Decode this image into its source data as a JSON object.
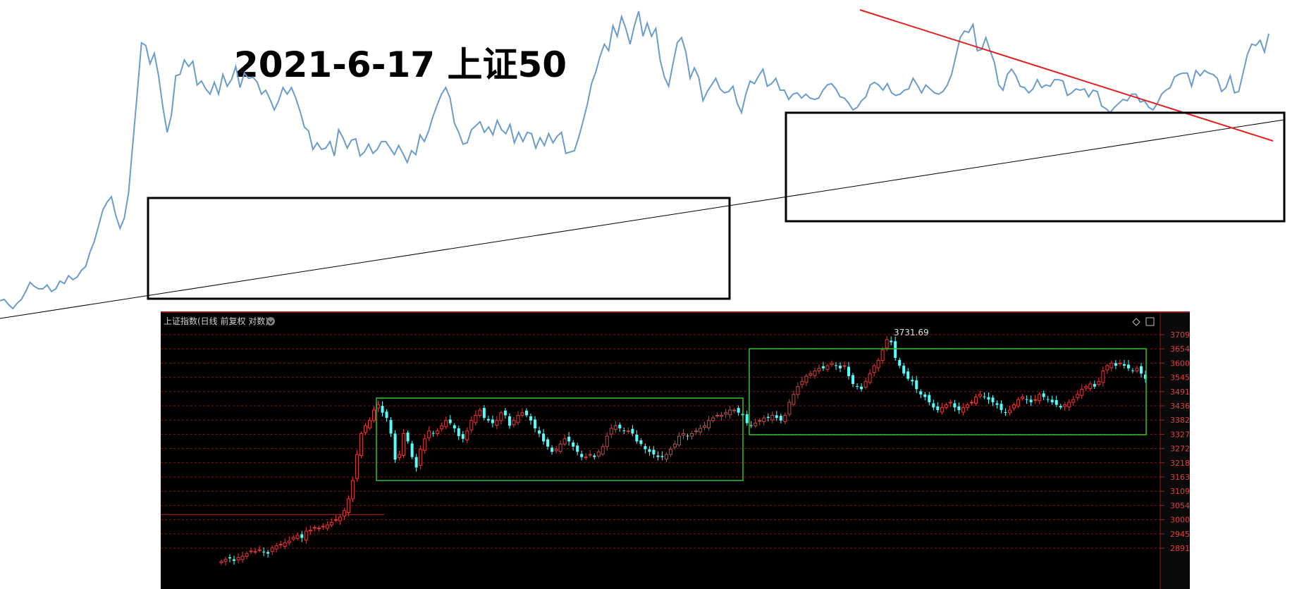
{
  "title": "2021-6-17 上证50",
  "chart_data": [
    {
      "type": "line",
      "title": "2021-6-17 上证50",
      "series_color": "#6a9ccb",
      "series": [
        {
          "values": [
            540,
            541,
            537,
            534,
            538,
            541,
            547,
            554,
            551,
            549,
            549,
            552,
            547,
            549,
            555,
            553,
            559,
            556,
            558,
            563,
            566,
            577,
            585,
            597,
            609,
            615,
            619,
            605,
            595,
            603,
            622,
            660,
            697,
            736,
            734,
            720,
            728,
            711,
            687,
            668,
            681,
            711,
            712,
            723,
            718,
            722,
            704,
            707,
            701,
            697,
            706,
            697,
            712,
            703,
            708,
            718,
            702,
            713,
            709,
            710,
            706,
            697,
            700,
            693,
            685,
            692,
            702,
            697,
            702,
            694,
            684,
            672,
            669,
            655,
            660,
            655,
            656,
            661,
            650,
            670,
            664,
            656,
            662,
            663,
            650,
            653,
            659,
            652,
            655,
            661,
            661,
            656,
            651,
            658,
            652,
            645,
            654,
            651,
            666,
            661,
            669,
            680,
            689,
            697,
            702,
            694,
            675,
            668,
            659,
            660,
            670,
            673,
            676,
            668,
            672,
            666,
            677,
            670,
            667,
            674,
            660,
            668,
            661,
            668,
            667,
            656,
            664,
            658,
            667,
            660,
            665,
            668,
            652,
            653,
            654,
            664,
            676,
            689,
            705,
            714,
            726,
            735,
            730,
            749,
            741,
            756,
            747,
            735,
            749,
            760,
            741,
            751,
            741,
            747,
            723,
            710,
            703,
            720,
            736,
            740,
            729,
            709,
            717,
            710,
            692,
            699,
            704,
            709,
            701,
            698,
            699,
            703,
            690,
            683,
            697,
            707,
            705,
            711,
            716,
            703,
            705,
            709,
            700,
            700,
            693,
            697,
            698,
            694,
            697,
            694,
            693,
            694,
            700,
            704,
            705,
            701,
            695,
            694,
            690,
            685,
            687,
            692,
            695,
            704,
            706,
            704,
            700,
            705,
            698,
            696,
            697,
            700,
            701,
            709,
            704,
            698,
            704,
            701,
            698,
            697,
            699,
            704,
            712,
            726,
            740,
            745,
            744,
            750,
            730,
            731,
            740,
            730,
            721,
            704,
            700,
            712,
            716,
            711,
            703,
            702,
            698,
            701,
            708,
            702,
            704,
            703,
            708,
            708,
            707,
            696,
            698,
            701,
            700,
            701,
            695,
            700,
            699,
            688,
            686,
            683,
            687,
            690,
            693,
            692,
            697,
            697,
            691,
            692,
            687,
            685,
            690,
            697,
            700,
            702,
            710,
            712,
            713,
            713,
            703,
            715,
            711,
            715,
            713,
            712,
            709,
            699,
            702,
            711,
            698,
            699,
            713,
            727,
            735,
            734,
            738,
            729,
            743
          ]
        }
      ],
      "ref_lines": [
        {
          "name": "上升趋势线",
          "color": "#000000"
        },
        {
          "name": "下降趋势线",
          "color": "#e02020"
        }
      ],
      "boxes_color": "#000000",
      "grid": false,
      "legend": "none"
    },
    {
      "type": "candlestick",
      "header": "上证指数(日线 前复权 对数)",
      "high_label": "3731.69",
      "y_ticks": [
        "3709",
        "3654",
        "3600",
        "3545",
        "3491",
        "3436",
        "3382",
        "3327",
        "3272",
        "3218",
        "3163",
        "3109",
        "3054",
        "3000",
        "2945",
        "2891"
      ],
      "up_color": "#e03c3c",
      "down_color": "#54ffff",
      "box_color": "#2ec02e",
      "ref_line_value": 3020,
      "grid": true,
      "closes": [
        2840,
        2848,
        2852,
        2842,
        2855,
        2860,
        2870,
        2880,
        2878,
        2885,
        2876,
        2870,
        2892,
        2900,
        2906,
        2912,
        2918,
        2932,
        2940,
        2930,
        2956,
        2960,
        2970,
        2968,
        2975,
        2980,
        2990,
        3000,
        3010,
        3035,
        3080,
        3150,
        3250,
        3330,
        3360,
        3380,
        3420,
        3440,
        3410,
        3390,
        3330,
        3230,
        3250,
        3330,
        3300,
        3240,
        3200,
        3270,
        3310,
        3340,
        3330,
        3340,
        3360,
        3380,
        3370,
        3350,
        3320,
        3310,
        3340,
        3380,
        3400,
        3420,
        3390,
        3380,
        3370,
        3380,
        3410,
        3400,
        3360,
        3380,
        3400,
        3410,
        3400,
        3380,
        3350,
        3330,
        3300,
        3280,
        3260,
        3270,
        3290,
        3310,
        3300,
        3280,
        3260,
        3240,
        3240,
        3250,
        3240,
        3260,
        3280,
        3320,
        3350,
        3360,
        3350,
        3340,
        3340,
        3330,
        3300,
        3290,
        3270,
        3260,
        3250,
        3240,
        3240,
        3250,
        3270,
        3290,
        3320,
        3330,
        3320,
        3330,
        3340,
        3350,
        3360,
        3380,
        3390,
        3400,
        3400,
        3410,
        3420,
        3420,
        3410,
        3400,
        3370,
        3360,
        3370,
        3380,
        3390,
        3390,
        3400,
        3390,
        3380,
        3400,
        3450,
        3480,
        3510,
        3530,
        3550,
        3560,
        3570,
        3580,
        3580,
        3590,
        3600,
        3590,
        3580,
        3590,
        3550,
        3520,
        3510,
        3500,
        3530,
        3560,
        3590,
        3610,
        3650,
        3690,
        3680,
        3620,
        3590,
        3560,
        3540,
        3530,
        3500,
        3480,
        3470,
        3450,
        3430,
        3420,
        3430,
        3440,
        3450,
        3430,
        3420,
        3430,
        3440,
        3450,
        3470,
        3480,
        3470,
        3460,
        3450,
        3440,
        3420,
        3410,
        3420,
        3440,
        3460,
        3470,
        3460,
        3450,
        3460,
        3480,
        3470,
        3460,
        3450,
        3440,
        3430,
        3440,
        3450,
        3460,
        3480,
        3500,
        3510,
        3520,
        3510,
        3530,
        3570,
        3590,
        3600,
        3590,
        3600,
        3590,
        3580,
        3570,
        3580,
        3560,
        3540
      ]
    }
  ]
}
